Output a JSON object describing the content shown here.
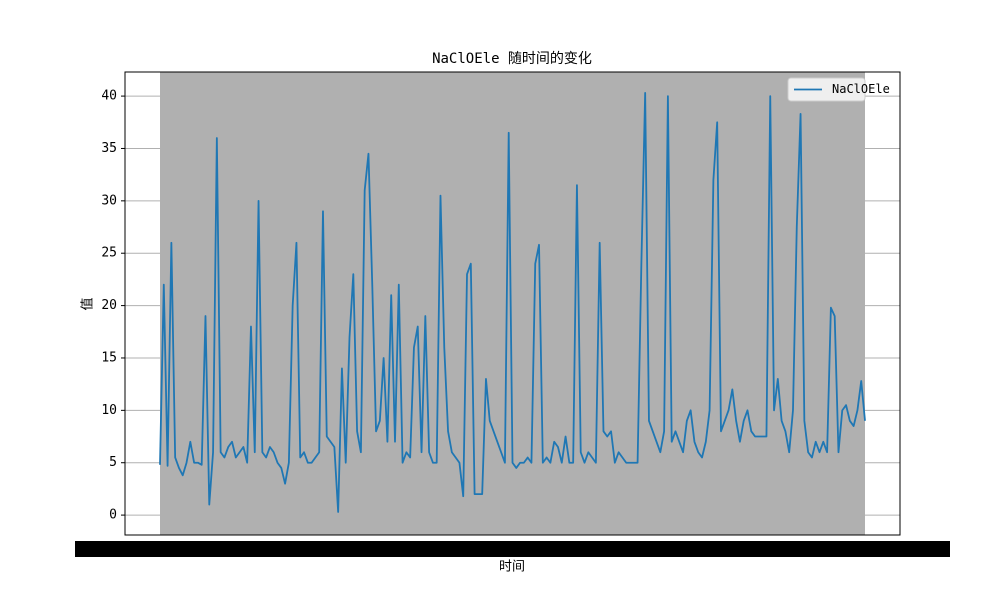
{
  "chart_data": {
    "type": "line",
    "title": "NaClOEle 随时间的变化",
    "xlabel": "时间",
    "ylabel": "值",
    "series": [
      {
        "name": "NaClOEle",
        "color": "#1f77b4",
        "values": [
          4.8,
          22,
          4.7,
          26,
          5.5,
          4.5,
          3.8,
          5,
          7,
          5,
          5,
          4.8,
          19,
          1,
          6,
          36,
          6,
          5.5,
          6.5,
          7,
          5.5,
          6,
          6.5,
          5,
          18,
          6,
          30,
          6,
          5.5,
          6.5,
          6,
          5,
          4.5,
          3,
          5,
          20,
          26,
          5.5,
          6,
          5,
          5,
          5.5,
          6,
          29,
          7.5,
          7,
          6.5,
          0.3,
          14,
          5,
          17,
          23,
          8,
          6,
          31,
          34.5,
          22,
          8,
          9,
          15,
          7,
          21,
          7,
          22,
          5,
          6,
          5.5,
          16,
          18,
          6,
          19,
          6,
          5,
          5,
          30.5,
          16,
          8,
          6,
          5.5,
          5,
          1.8,
          23,
          24,
          2,
          2,
          2,
          13,
          9,
          8,
          7,
          6,
          5,
          36.5,
          5,
          4.5,
          5,
          5,
          5.5,
          5,
          24,
          25.8,
          5,
          5.5,
          5,
          7,
          6.5,
          5,
          7.5,
          5,
          5,
          31.5,
          6,
          5,
          6,
          5.5,
          5,
          26,
          8,
          7.5,
          8,
          5,
          6,
          5.5,
          5,
          5,
          5,
          5,
          24,
          40.3,
          9,
          8,
          7,
          6,
          8,
          40,
          7,
          8,
          7,
          6,
          9,
          10,
          7,
          6,
          5.5,
          7,
          10,
          32,
          37.5,
          8,
          9,
          10,
          12,
          9,
          7,
          9,
          10,
          8,
          7.5,
          7.5,
          7.5,
          7.5,
          40,
          10,
          13,
          9,
          8,
          6,
          10,
          27.5,
          38.3,
          9,
          6,
          5.5,
          7,
          6,
          7,
          6,
          19.8,
          19,
          6,
          10,
          10.5,
          9,
          8.5,
          10,
          12.8,
          9
        ]
      }
    ],
    "ylim": [
      -1.9,
      42.3
    ],
    "yticks": [
      0,
      5,
      10,
      15,
      20,
      25,
      30,
      35,
      40
    ],
    "grid": true,
    "legend": "upper right"
  }
}
